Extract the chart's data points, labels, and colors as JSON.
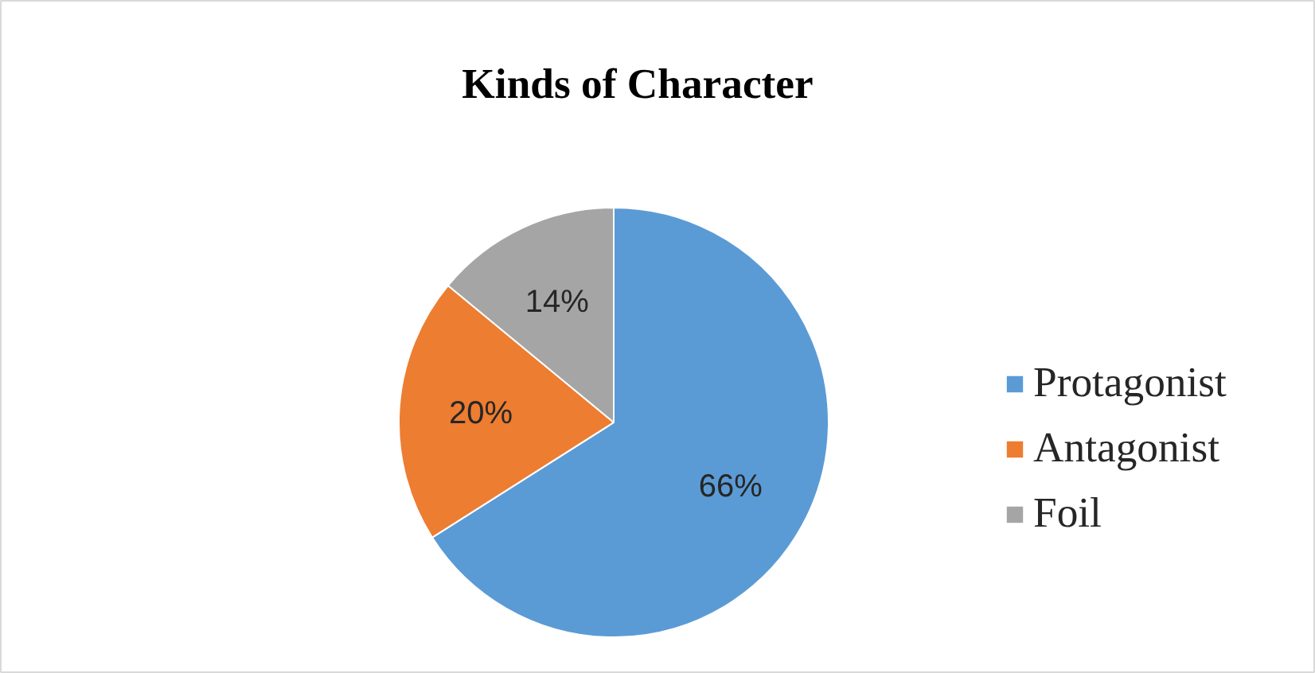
{
  "chart_data": {
    "type": "pie",
    "title": "Kinds of Character",
    "categories": [
      "Protagonist",
      "Antagonist",
      "Foil"
    ],
    "values": [
      66,
      20,
      14
    ],
    "colors": [
      "#5b9bd5",
      "#ed7d31",
      "#a5a5a5"
    ],
    "value_labels": [
      "66%",
      "20%",
      "14%"
    ],
    "legend": "right"
  }
}
